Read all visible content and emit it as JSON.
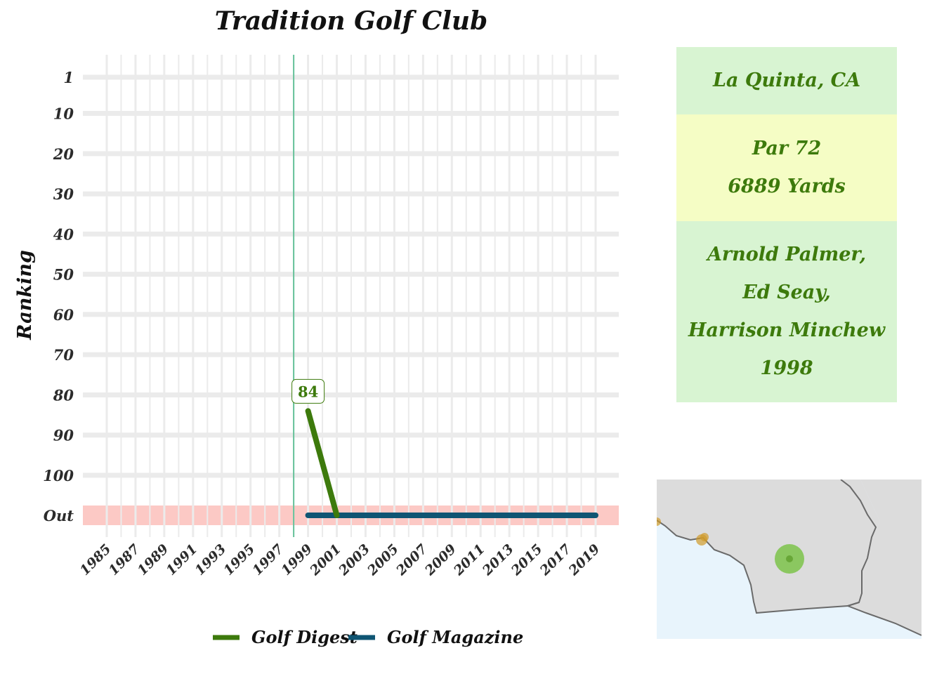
{
  "chart_data": {
    "type": "line",
    "title": "Tradition Golf Club",
    "ylabel": "Ranking",
    "xlabel": "",
    "x_ticks": [
      "1985",
      "1987",
      "1989",
      "1991",
      "1993",
      "1995",
      "1997",
      "1999",
      "2001",
      "2003",
      "2005",
      "2007",
      "2009",
      "2011",
      "2013",
      "2015",
      "2017",
      "2019"
    ],
    "y_ticks": [
      "1",
      "10",
      "20",
      "30",
      "40",
      "50",
      "60",
      "70",
      "80",
      "90",
      "100",
      "Out"
    ],
    "xlim": [
      1984,
      2021
    ],
    "y_scale": [
      1,
      110
    ],
    "out_label": "Out",
    "out_band_color": "#fcc9c5",
    "opened_year": 1998,
    "opened_line_color": "#66c29a",
    "grid": true,
    "legend_position": "bottom",
    "series": [
      {
        "name": "Golf Digest",
        "color": "#3d7a0c",
        "points": [
          {
            "x": 1999,
            "y": 84
          },
          {
            "x": 2001,
            "y": "Out"
          }
        ]
      },
      {
        "name": "Golf Magazine",
        "color": "#0f5573",
        "points": [
          {
            "x": 1999,
            "y": "Out"
          },
          {
            "x": 2019,
            "y": "Out"
          }
        ]
      }
    ],
    "data_labels": [
      {
        "series": "Golf Digest",
        "x": 1999,
        "y": 84,
        "text": "84"
      }
    ]
  },
  "info": {
    "location": "La Quinta, CA",
    "par": "Par 72",
    "yards": "6889 Yards",
    "architect_lines": [
      "Arnold Palmer,",
      "Ed Seay,",
      "Harrison Minchew",
      "1998"
    ],
    "colors": {
      "text": "#3d7a0c",
      "box_green": "#d8f4d2",
      "box_yellow": "#f5fdc5"
    }
  },
  "map": {
    "land_color": "#dcdcdc",
    "ocean_color": "#e8f4fc",
    "border_color": "#6a6a6a",
    "highlight_color": "#7cc34a",
    "other_courses_color": "#d09a2a"
  }
}
